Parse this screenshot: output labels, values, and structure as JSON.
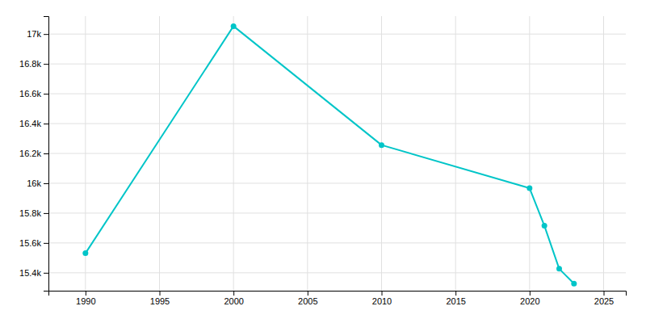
{
  "chart_data": {
    "type": "line",
    "x": [
      1990,
      2000,
      2010,
      2020,
      2021,
      2022,
      2023
    ],
    "values": [
      15531,
      17053,
      16256,
      15967,
      15715,
      15427,
      15327
    ],
    "color": "#00c5c8",
    "marker": "circle",
    "xlim": [
      1987.5,
      2026.5
    ],
    "ylim": [
      15280,
      17120
    ],
    "xticks": [
      1990,
      1995,
      2000,
      2005,
      2010,
      2015,
      2020,
      2025
    ],
    "yticks": [
      {
        "value": 15400,
        "label": "15.4k"
      },
      {
        "value": 15600,
        "label": "15.6k"
      },
      {
        "value": 15800,
        "label": "15.8k"
      },
      {
        "value": 16000,
        "label": "16k"
      },
      {
        "value": 16200,
        "label": "16.2k"
      },
      {
        "value": 16400,
        "label": "16.4k"
      },
      {
        "value": 16600,
        "label": "16.6k"
      },
      {
        "value": 16800,
        "label": "16.8k"
      },
      {
        "value": 17000,
        "label": "17k"
      }
    ],
    "grid": true
  }
}
